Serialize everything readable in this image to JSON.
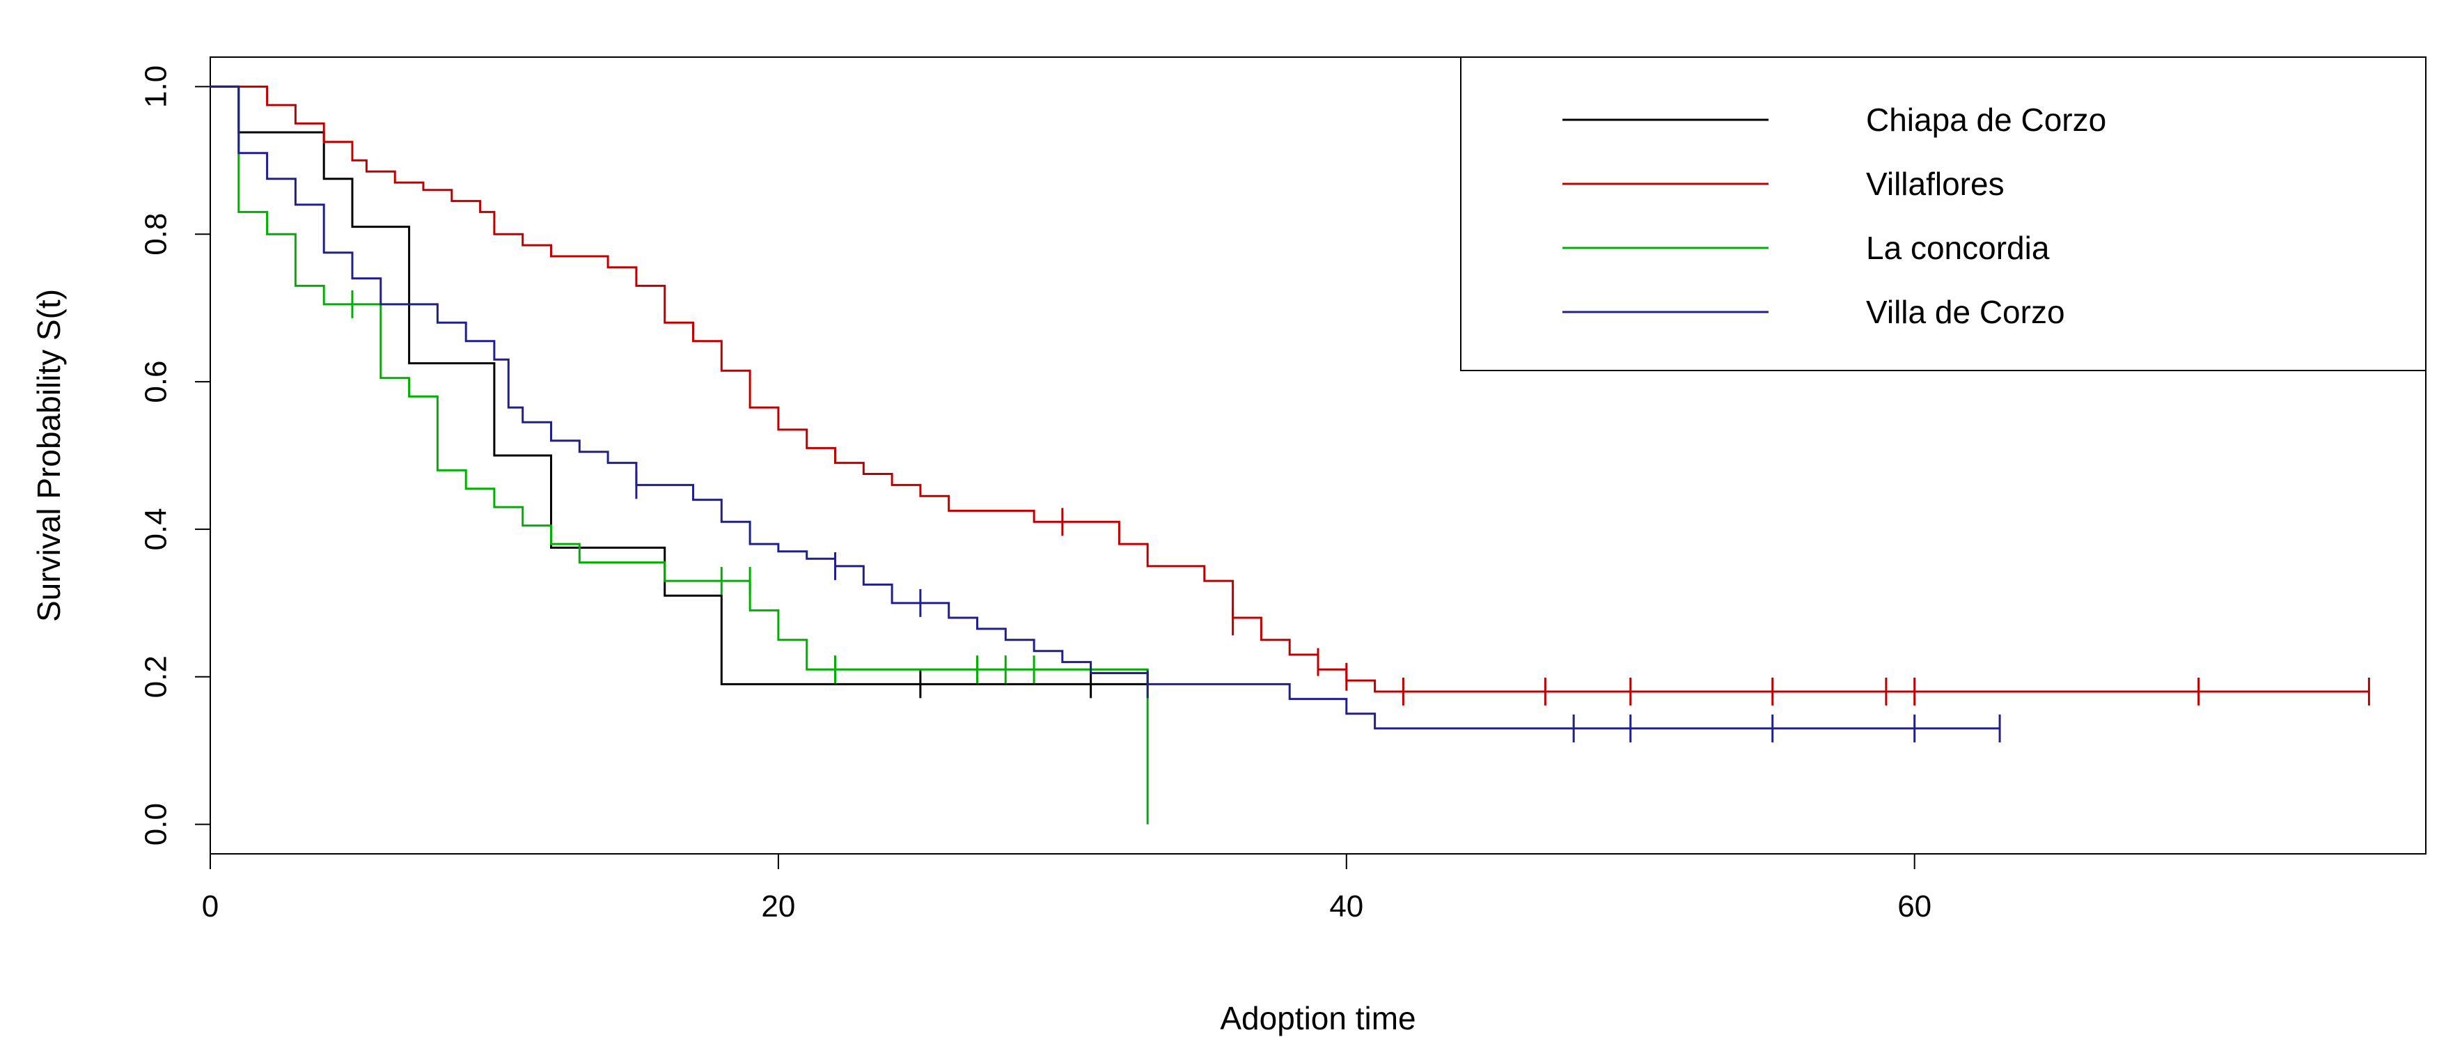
{
  "chart_data": {
    "type": "line",
    "subtype": "kaplan-meier-step",
    "title": "",
    "xlabel": "Adoption time",
    "ylabel": "Survival Probability S(t)",
    "xlim": [
      0,
      78
    ],
    "ylim": [
      -0.04,
      1.04
    ],
    "x_ticks": [
      0,
      20,
      40,
      60
    ],
    "x_tick_labels": [
      "0",
      "20",
      "40",
      "60"
    ],
    "y_ticks": [
      0.0,
      0.2,
      0.4,
      0.6,
      0.8,
      1.0
    ],
    "y_tick_labels": [
      "0.0",
      "0.2",
      "0.4",
      "0.6",
      "0.8",
      "1.0"
    ],
    "grid": false,
    "legend_position": "top-right",
    "series": [
      {
        "name": "Chiapa de Corzo",
        "color": "#000000",
        "start": [
          0,
          1.0
        ],
        "steps": [
          [
            1,
            0.938
          ],
          [
            4,
            0.875
          ],
          [
            5,
            0.81
          ],
          [
            7,
            0.625
          ],
          [
            10,
            0.5
          ],
          [
            12,
            0.375
          ],
          [
            16,
            0.31
          ],
          [
            18,
            0.19
          ]
        ],
        "end_x": 33,
        "censored": [
          [
            25,
            0.19
          ],
          [
            31,
            0.19
          ]
        ]
      },
      {
        "name": "Villaflores",
        "color": "#c00000",
        "start": [
          0,
          1.0
        ],
        "steps": [
          [
            2,
            0.975
          ],
          [
            3,
            0.95
          ],
          [
            4,
            0.925
          ],
          [
            5,
            0.9
          ],
          [
            5.5,
            0.885
          ],
          [
            6.5,
            0.87
          ],
          [
            7.5,
            0.86
          ],
          [
            8.5,
            0.845
          ],
          [
            9.5,
            0.83
          ],
          [
            10,
            0.8
          ],
          [
            11,
            0.785
          ],
          [
            12,
            0.77
          ],
          [
            14,
            0.755
          ],
          [
            15,
            0.73
          ],
          [
            16,
            0.68
          ],
          [
            17,
            0.655
          ],
          [
            18,
            0.615
          ],
          [
            19,
            0.565
          ],
          [
            20,
            0.535
          ],
          [
            21,
            0.51
          ],
          [
            22,
            0.49
          ],
          [
            23,
            0.475
          ],
          [
            24,
            0.46
          ],
          [
            25,
            0.445
          ],
          [
            26,
            0.425
          ],
          [
            29,
            0.41
          ],
          [
            32,
            0.38
          ],
          [
            33,
            0.35
          ],
          [
            35,
            0.33
          ],
          [
            36,
            0.28
          ],
          [
            37,
            0.25
          ],
          [
            38,
            0.23
          ],
          [
            39,
            0.21
          ],
          [
            40,
            0.195
          ],
          [
            41,
            0.18
          ]
        ],
        "end_x": 76,
        "censored": [
          [
            30,
            0.41
          ],
          [
            36,
            0.275
          ],
          [
            39,
            0.22
          ],
          [
            40,
            0.2
          ],
          [
            42,
            0.18
          ],
          [
            47,
            0.18
          ],
          [
            50,
            0.18
          ],
          [
            55,
            0.18
          ],
          [
            59,
            0.18
          ],
          [
            60,
            0.18
          ],
          [
            70,
            0.18
          ],
          [
            76,
            0.18
          ]
        ]
      },
      {
        "name": "La concordia",
        "color": "#00b000",
        "start": [
          0,
          1.0
        ],
        "steps": [
          [
            1,
            0.83
          ],
          [
            2,
            0.8
          ],
          [
            3,
            0.73
          ],
          [
            4,
            0.705
          ],
          [
            6,
            0.605
          ],
          [
            7,
            0.58
          ],
          [
            8,
            0.48
          ],
          [
            9,
            0.455
          ],
          [
            10,
            0.43
          ],
          [
            11,
            0.405
          ],
          [
            12,
            0.38
          ],
          [
            13,
            0.355
          ],
          [
            16,
            0.33
          ],
          [
            19,
            0.29
          ],
          [
            20,
            0.25
          ],
          [
            21,
            0.21
          ],
          [
            33,
            0.0
          ]
        ],
        "end_x": 33,
        "censored": [
          [
            5,
            0.705
          ],
          [
            18,
            0.33
          ],
          [
            19,
            0.33
          ],
          [
            22,
            0.21
          ],
          [
            27,
            0.21
          ],
          [
            28,
            0.21
          ],
          [
            29,
            0.21
          ]
        ]
      },
      {
        "name": "Villa de Corzo",
        "color": "#20208a",
        "start": [
          0,
          1.0
        ],
        "steps": [
          [
            1,
            0.91
          ],
          [
            2,
            0.875
          ],
          [
            3,
            0.84
          ],
          [
            4,
            0.775
          ],
          [
            5,
            0.74
          ],
          [
            6,
            0.705
          ],
          [
            8,
            0.68
          ],
          [
            9,
            0.655
          ],
          [
            10,
            0.63
          ],
          [
            10.5,
            0.565
          ],
          [
            11,
            0.545
          ],
          [
            12,
            0.52
          ],
          [
            13,
            0.505
          ],
          [
            14,
            0.49
          ],
          [
            15,
            0.46
          ],
          [
            17,
            0.44
          ],
          [
            18,
            0.41
          ],
          [
            19,
            0.38
          ],
          [
            20,
            0.37
          ],
          [
            21,
            0.36
          ],
          [
            22,
            0.35
          ],
          [
            23,
            0.325
          ],
          [
            24,
            0.3
          ],
          [
            26,
            0.28
          ],
          [
            27,
            0.265
          ],
          [
            28,
            0.25
          ],
          [
            29,
            0.235
          ],
          [
            30,
            0.22
          ],
          [
            31,
            0.205
          ],
          [
            33,
            0.19
          ],
          [
            38,
            0.17
          ],
          [
            40,
            0.15
          ],
          [
            41,
            0.13
          ]
        ],
        "end_x": 63,
        "censored": [
          [
            15,
            0.46
          ],
          [
            22,
            0.35
          ],
          [
            25,
            0.3
          ],
          [
            33,
            0.19
          ],
          [
            48,
            0.13
          ],
          [
            50,
            0.13
          ],
          [
            55,
            0.13
          ],
          [
            60,
            0.13
          ],
          [
            63,
            0.13
          ]
        ]
      }
    ]
  }
}
